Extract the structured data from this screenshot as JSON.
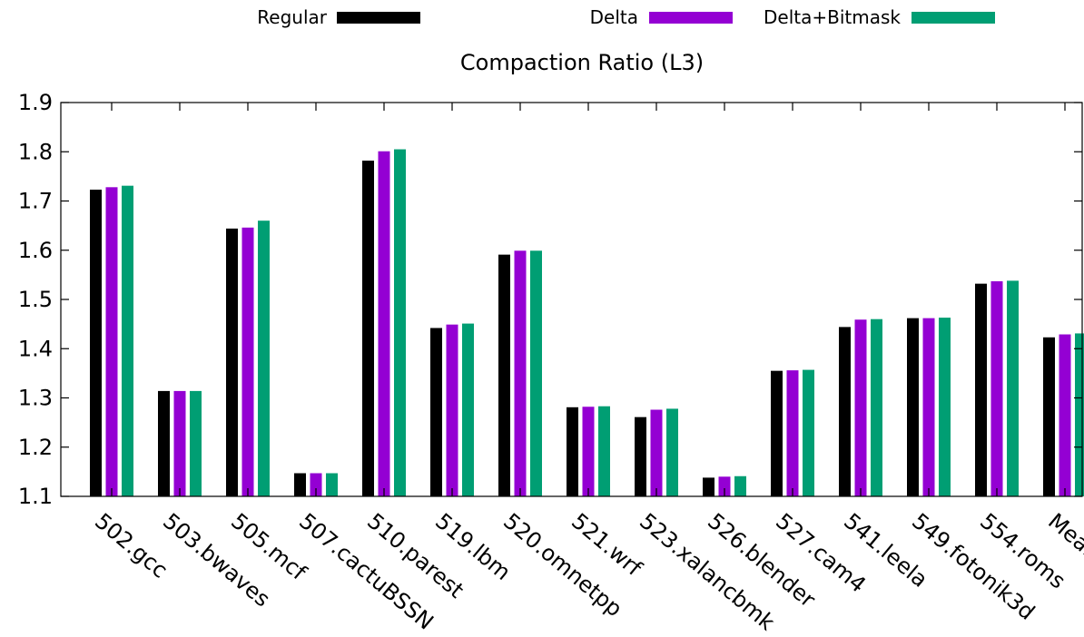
{
  "chart_data": {
    "type": "bar",
    "title": "Compaction Ratio (L3)",
    "xlabel": "",
    "ylabel": "",
    "ylim": [
      1.1,
      1.9
    ],
    "yticks": [
      "1.1",
      "1.2",
      "1.3",
      "1.4",
      "1.5",
      "1.6",
      "1.7",
      "1.8",
      "1.9"
    ],
    "legend_position": "top",
    "grid": false,
    "categories": [
      "502.gcc",
      "503.bwaves",
      "505.mcf",
      "507.cactuBSSN",
      "510.parest",
      "519.lbm",
      "520.omnetpp",
      "521.wrf",
      "523.xalancbmk",
      "526.blender",
      "527.cam4",
      "541.leela",
      "549.fotonik3d",
      "554.roms",
      "Mean"
    ],
    "series": [
      {
        "name": "Regular",
        "color": "#000000",
        "values": [
          1.723,
          1.314,
          1.644,
          1.147,
          1.782,
          1.442,
          1.591,
          1.281,
          1.261,
          1.138,
          1.355,
          1.444,
          1.462,
          1.532,
          1.423
        ]
      },
      {
        "name": "Delta",
        "color": "#9400d3",
        "values": [
          1.728,
          1.314,
          1.646,
          1.147,
          1.801,
          1.449,
          1.599,
          1.282,
          1.276,
          1.14,
          1.356,
          1.459,
          1.462,
          1.537,
          1.429
        ]
      },
      {
        "name": "Delta+Bitmask",
        "color": "#009e73",
        "values": [
          1.731,
          1.314,
          1.66,
          1.147,
          1.805,
          1.451,
          1.599,
          1.283,
          1.278,
          1.141,
          1.357,
          1.46,
          1.463,
          1.538,
          1.431
        ]
      }
    ]
  }
}
